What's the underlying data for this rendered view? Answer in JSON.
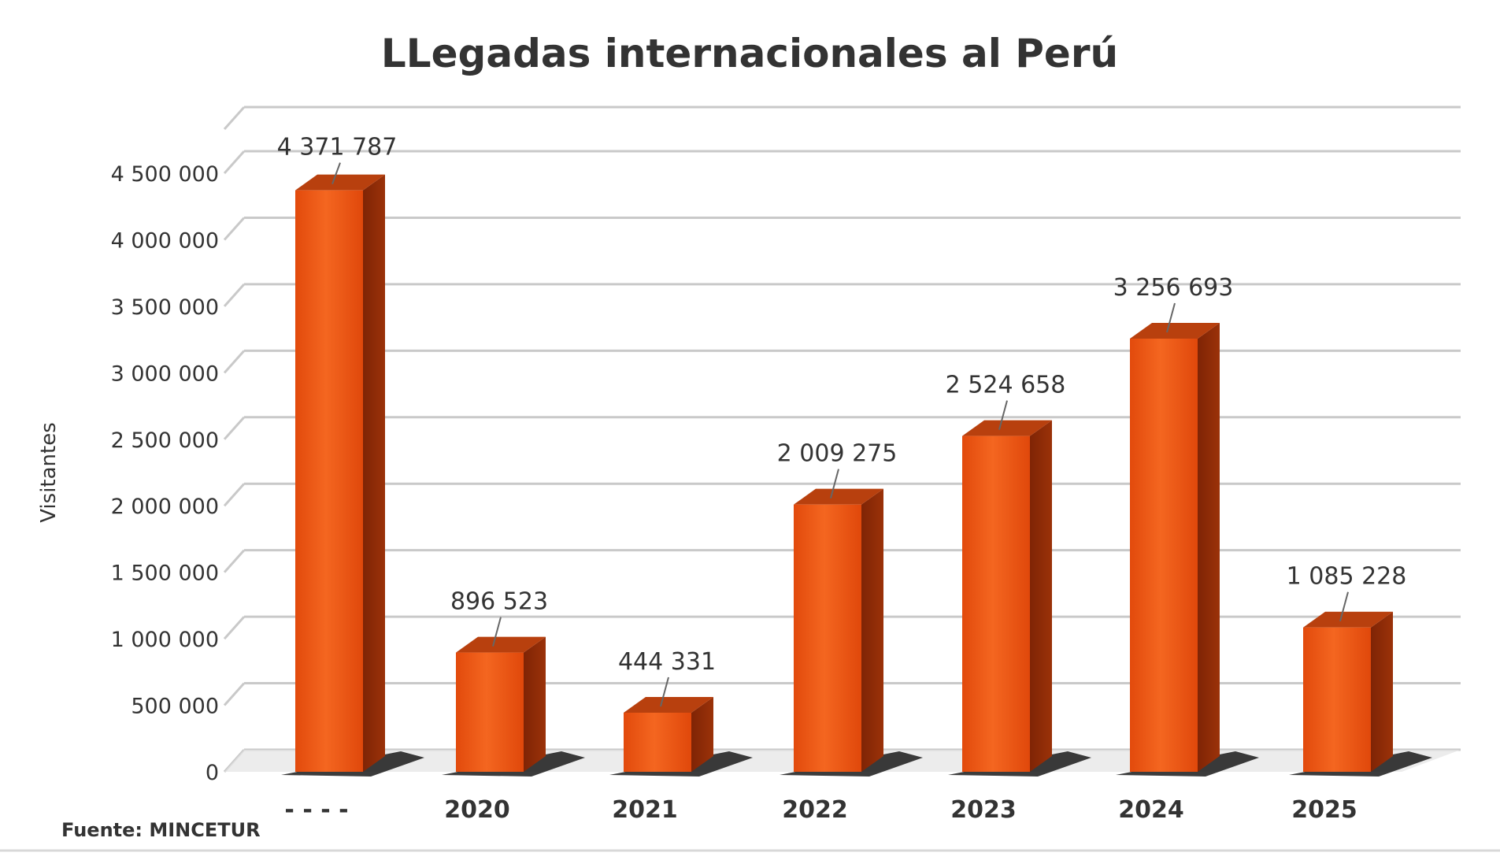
{
  "chart_data": {
    "type": "bar",
    "title": "LLegadas internacionales al Perú",
    "ylabel": "Visitantes",
    "xlabel": "",
    "categories": [
      "- - - -",
      "2020",
      "2021",
      "2022",
      "2023",
      "2024",
      "2025"
    ],
    "values": [
      4371787,
      896523,
      444331,
      2009275,
      2524658,
      3256693,
      1085228
    ],
    "data_labels": [
      "4 371 787",
      "896 523",
      "444 331",
      "2 009 275",
      "2 524 658",
      "3 256 693",
      "1 085 228"
    ],
    "yticks": [
      0,
      500000,
      1000000,
      1500000,
      2000000,
      2500000,
      3000000,
      3500000,
      4000000,
      4500000
    ],
    "ytick_labels": [
      "0",
      "500 000",
      "1 000 000",
      "1 500 000",
      "2 000 000",
      "2 500 000",
      "3 000 000",
      "3 500 000",
      "4 000 000",
      "4 500 000"
    ],
    "ylim": [
      0,
      4500000
    ],
    "grid": true,
    "style": "3d-bar",
    "colors": {
      "bar_front": "#e8500f",
      "bar_front_light": "#f26a1e",
      "bar_side": "#8a2a08",
      "bar_top": "#b8400e",
      "grid": "#c9c9c9",
      "text": "#333333",
      "floor": "#e4e4e4"
    },
    "source": "Fuente: MINCETUR"
  }
}
